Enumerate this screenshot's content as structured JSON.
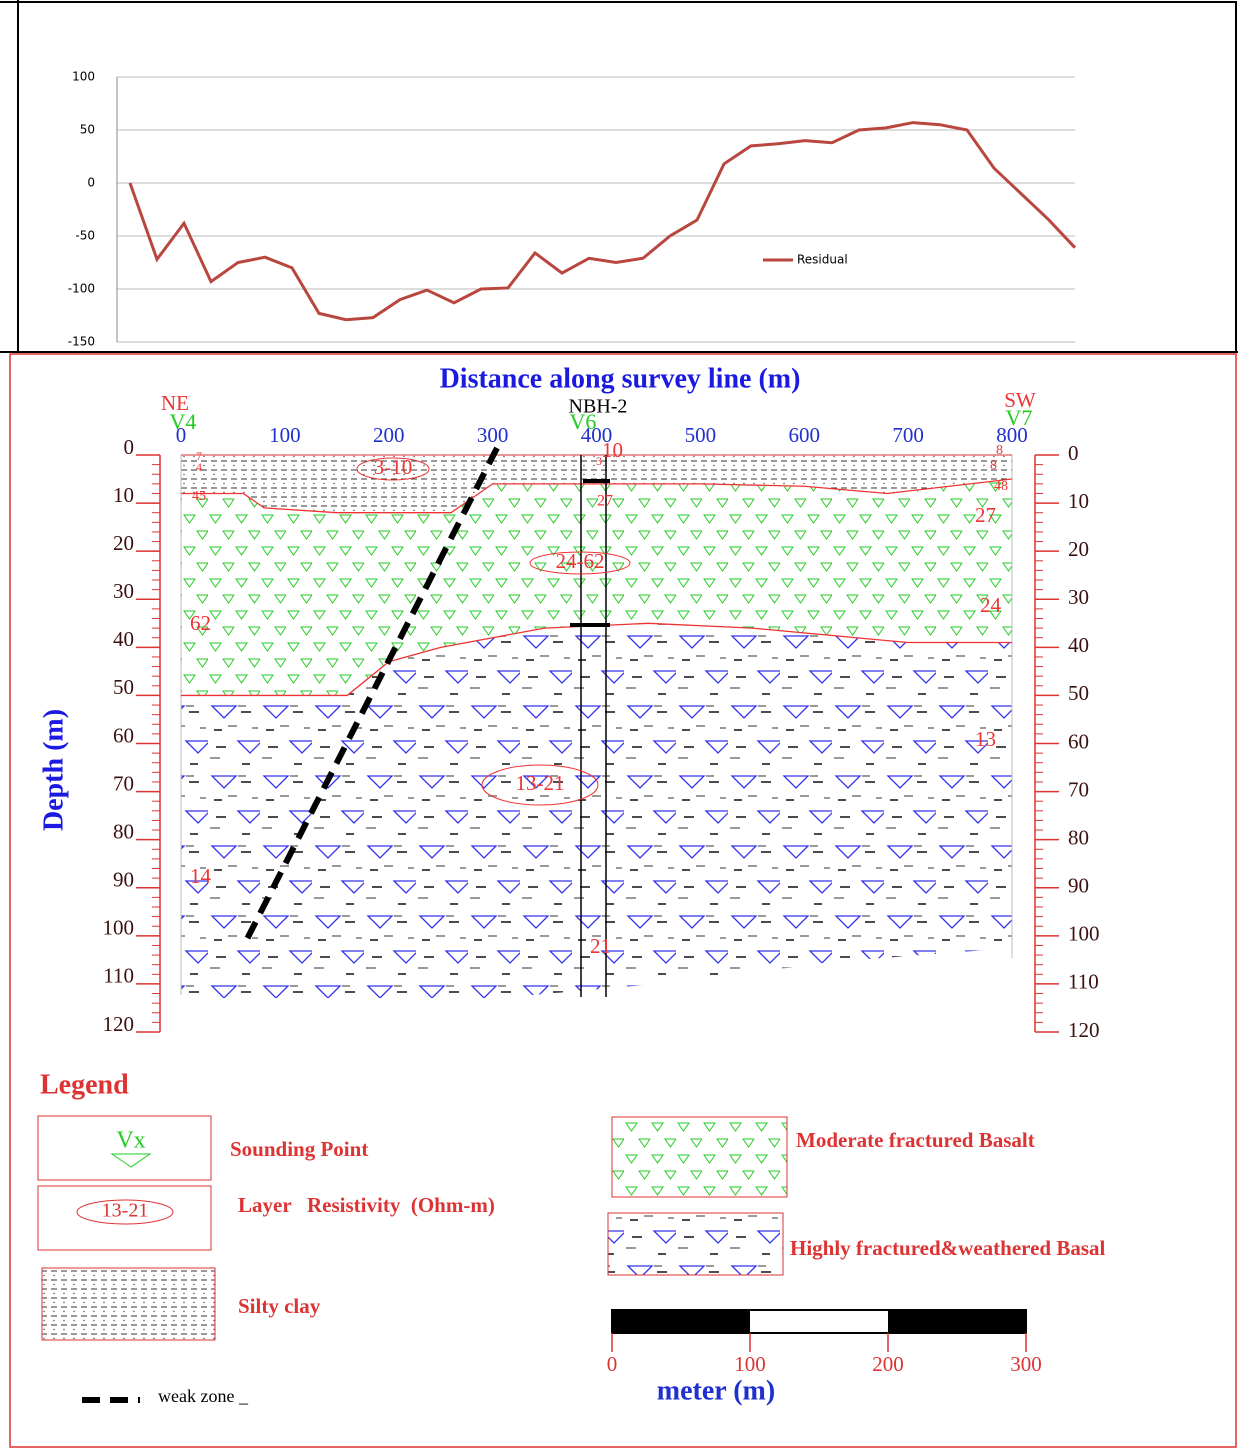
{
  "chart_data": [
    {
      "type": "line",
      "series": [
        {
          "name": "Residual",
          "color": "#b9473f",
          "values": [
            0,
            -72,
            -38,
            -93,
            -75,
            -70,
            -80,
            -123,
            -129,
            -127,
            -110,
            -101,
            -113,
            -100,
            -99,
            -66,
            -85,
            -71,
            -75,
            -71,
            -50,
            -35,
            18,
            35,
            37,
            40,
            38,
            50,
            52,
            57,
            55,
            50,
            14,
            -10,
            -34,
            -61
          ]
        }
      ],
      "ylim": [
        -150,
        100
      ],
      "yticks": [
        100,
        50,
        0,
        -50,
        -100,
        -150
      ],
      "grid": true,
      "legend": "right"
    },
    {
      "type": "section",
      "title": "Distance along survey line (m)",
      "ylabel": "Depth (m)",
      "xlim": [
        0,
        800
      ],
      "xticks": [
        0,
        100,
        200,
        300,
        400,
        500,
        600,
        700,
        800
      ],
      "ylim": [
        0,
        120
      ],
      "yticks": [
        0,
        10,
        20,
        30,
        40,
        50,
        60,
        70,
        80,
        90,
        100,
        110,
        120
      ],
      "directions": [
        "NE",
        "SW"
      ],
      "soundings": [
        "V4",
        "V6",
        "V7"
      ],
      "borehole": "NBH-2",
      "resistivity_ranges": [
        "3-10",
        "24-62",
        "13-21"
      ],
      "resistivities": [
        7,
        4,
        45,
        62,
        14,
        10,
        3,
        27,
        21,
        8,
        8,
        48,
        27,
        24,
        13
      ],
      "boundaries": [
        {
          "x": [
            0,
            60,
            80,
            150,
            260,
            300,
            400,
            500,
            600,
            680,
            800
          ],
          "depth": [
            8,
            8,
            11,
            12,
            12,
            6,
            6,
            6,
            6.5,
            8,
            5
          ]
        },
        {
          "x": [
            0,
            160,
            200,
            250,
            350,
            450,
            550,
            650,
            700,
            800
          ],
          "depth": [
            50,
            50,
            43,
            40,
            36,
            35,
            36,
            38,
            39,
            39
          ]
        }
      ]
    }
  ],
  "legend": {
    "title": "Legend",
    "sounding_symbol": "Vx",
    "sounding": "Sounding Point",
    "resistivity_symbol": "13-21",
    "resistivity": "Layer   Resistivity  (Ohm-m)",
    "silty_clay": "Silty clay",
    "weak_zone": "weak zone _",
    "moderate": "Moderate fractured Basalt",
    "highly": "Highly fractured&weathered Basal"
  },
  "scale_bar": {
    "ticks": [
      0,
      100,
      200,
      300
    ],
    "label": "meter (m)"
  }
}
